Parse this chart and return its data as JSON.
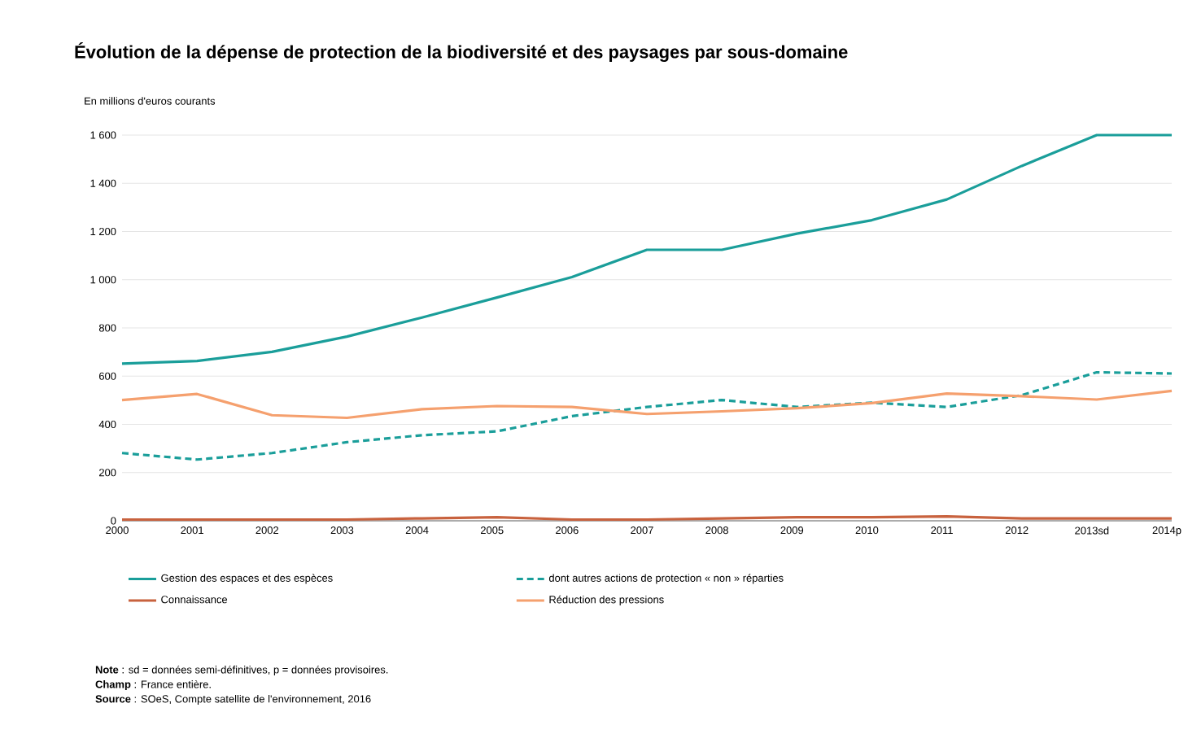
{
  "chart_data": {
    "type": "line",
    "title": "Évolution de la dépense de protection de la biodiversité et des paysages par sous-domaine",
    "ylabel": "En millions d'euros courants",
    "categories": [
      "2000",
      "2001",
      "2002",
      "2003",
      "2004",
      "2005",
      "2006",
      "2007",
      "2008",
      "2009",
      "2010",
      "2011",
      "2012",
      "2013sd",
      "2014p"
    ],
    "series": [
      {
        "name": "Gestion des espaces et des espèces",
        "color": "#1a9e9a",
        "values": [
          652,
          663,
          701,
          764,
          843,
          926,
          1011,
          1124,
          1124,
          1191,
          1247,
          1333,
          1472,
          1600,
          1600
        ]
      },
      {
        "name": "dont autres actions de protection « non » réparties",
        "color": "#1a9e9a",
        "line_style": "dashed",
        "values": [
          281,
          254,
          281,
          326,
          355,
          371,
          434,
          472,
          501,
          472,
          490,
          472,
          521,
          616,
          611
        ]
      },
      {
        "name": "Connaissance",
        "color": "#c8623e",
        "values": [
          5,
          5,
          5,
          5,
          10,
          15,
          5,
          5,
          10,
          15,
          15,
          18,
          10,
          10,
          10
        ]
      },
      {
        "name": "Réduction des pressions",
        "color": "#f5a06e",
        "values": [
          501,
          526,
          438,
          427,
          463,
          476,
          472,
          443,
          454,
          467,
          488,
          528,
          517,
          503,
          539
        ]
      }
    ],
    "ylim": [
      0,
      1600
    ],
    "yticks": [
      0,
      200,
      400,
      600,
      800,
      {
        "value": 1000,
        "label": "1 000"
      },
      {
        "value": 1200,
        "label": "1 200"
      },
      {
        "value": 1400,
        "label": "1 400"
      },
      {
        "value": 1600,
        "label": "1 600"
      }
    ],
    "grid": "y",
    "legend": "bottom",
    "marker": "none",
    "annotations": [
      "**Note** : sd = données semi-définitives, p = données provisoires.",
      "**Champ** : France entière.",
      "**Source** : SOeS, Compte satellite de l'environnement, 2016"
    ]
  }
}
